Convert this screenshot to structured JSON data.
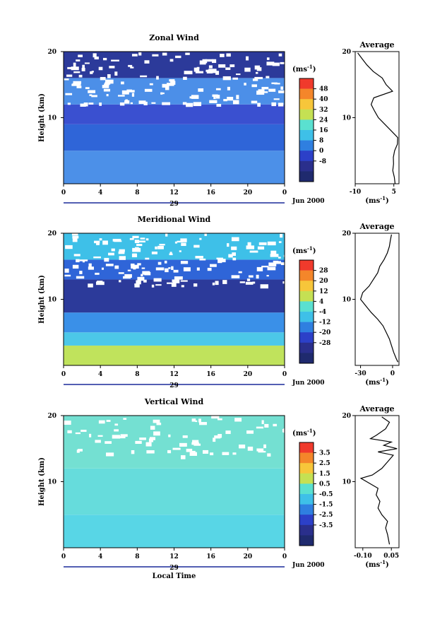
{
  "chart_data": [
    {
      "type": "heatmap",
      "title": "Zonal Wind",
      "xlabel": "",
      "ylabel": "Height (km)",
      "xlim": [
        0,
        24
      ],
      "ylim": [
        0,
        20
      ],
      "xticks": [
        "0",
        "4",
        "8",
        "12",
        "16",
        "20",
        "0"
      ],
      "yticks": [
        "20",
        "10"
      ],
      "date_label": "29",
      "month_label": "Jun 2000",
      "colorbar": {
        "unit": "(ms",
        "unit_exp": "-1",
        "unit_close": ")",
        "levels": [
          "48",
          "40",
          "32",
          "24",
          "16",
          "8",
          "0",
          "-8"
        ],
        "colors": [
          "#f03a2c",
          "#f4862a",
          "#f7c63a",
          "#c5e053",
          "#5ae0d0",
          "#3ec0e8",
          "#2f7fe0",
          "#2c40c8",
          "#2a2f8c",
          "#1f2a6e"
        ]
      },
      "field_bands": [
        {
          "y_from": 0,
          "y_to": 5,
          "color": "#4c90e8"
        },
        {
          "y_from": 5,
          "y_to": 9,
          "color": "#2f65d8"
        },
        {
          "y_from": 9,
          "y_to": 12,
          "color": "#3a50d0"
        },
        {
          "y_from": 12,
          "y_to": 16,
          "color": "#4c8fe8"
        },
        {
          "y_from": 16,
          "y_to": 20,
          "color": "#2c3a9a"
        }
      ],
      "average_profile": {
        "title": "Average",
        "xlim": [
          -10,
          7
        ],
        "xticks": [
          "-10",
          "5"
        ],
        "yticks": [
          "20",
          "10"
        ],
        "xlabel": "(ms",
        "xlabel_exp": "-1",
        "xlabel_close": ")",
        "height": [
          0,
          1,
          2,
          3,
          4,
          5,
          6,
          7,
          8,
          9,
          10,
          11,
          12,
          13,
          14,
          15,
          16,
          17,
          18,
          19,
          19.8
        ],
        "value": [
          5.5,
          5.2,
          4.6,
          4.9,
          4.8,
          5.3,
          6.4,
          6.5,
          4.0,
          1.5,
          -1.0,
          -2.5,
          -3.8,
          -2.8,
          4.5,
          2.0,
          0.5,
          -3.0,
          -5.5,
          -7.5,
          -9.0
        ]
      }
    },
    {
      "type": "heatmap",
      "title": "Meridional Wind",
      "xlabel": "",
      "ylabel": "Height (km)",
      "xlim": [
        0,
        24
      ],
      "ylim": [
        0,
        20
      ],
      "xticks": [
        "0",
        "4",
        "8",
        "12",
        "16",
        "20",
        "0"
      ],
      "yticks": [
        "20",
        "10"
      ],
      "date_label": "29",
      "month_label": "Jun 2000",
      "colorbar": {
        "unit": "(ms",
        "unit_exp": "-1",
        "unit_close": ")",
        "levels": [
          "28",
          "20",
          "12",
          "4",
          "-4",
          "-12",
          "-20",
          "-28"
        ],
        "colors": [
          "#f03a2c",
          "#f4862a",
          "#f7c63a",
          "#c5e053",
          "#5ae0d0",
          "#3ec0e8",
          "#2f7fe0",
          "#2c40c8",
          "#2a2f8c",
          "#1f2a6e"
        ]
      },
      "field_bands": [
        {
          "y_from": 0,
          "y_to": 3,
          "color": "#c0e35c"
        },
        {
          "y_from": 3,
          "y_to": 5,
          "color": "#4cc8e8"
        },
        {
          "y_from": 5,
          "y_to": 8,
          "color": "#3a90e8"
        },
        {
          "y_from": 8,
          "y_to": 13,
          "color": "#2c3a9a"
        },
        {
          "y_from": 13,
          "y_to": 16,
          "color": "#2f65d8"
        },
        {
          "y_from": 16,
          "y_to": 20,
          "color": "#3ec0e8"
        }
      ],
      "average_profile": {
        "title": "Average",
        "xlim": [
          -35,
          6
        ],
        "xticks": [
          "-30",
          "0"
        ],
        "yticks": [
          "20",
          "10"
        ],
        "xlabel": "(ms",
        "xlabel_exp": "-1",
        "xlabel_close": ")",
        "height": [
          0.5,
          1,
          2,
          3,
          4,
          5,
          6,
          7,
          8,
          9,
          10,
          11,
          12,
          13,
          14,
          15,
          16,
          17,
          18,
          19,
          19.8
        ],
        "value": [
          5.0,
          3.5,
          1.0,
          -1.0,
          -3.0,
          -6.0,
          -9.0,
          -14.0,
          -20.0,
          -25.0,
          -30.0,
          -28.0,
          -22.0,
          -18.0,
          -14.0,
          -12.0,
          -8.0,
          -5.0,
          -3.0,
          -2.0,
          -1.0
        ]
      }
    },
    {
      "type": "heatmap",
      "title": "Vertical Wind",
      "xlabel": "Local Time",
      "ylabel": "Height (km)",
      "xlim": [
        0,
        24
      ],
      "ylim": [
        0,
        20
      ],
      "xticks": [
        "0",
        "4",
        "8",
        "12",
        "16",
        "20",
        "0"
      ],
      "yticks": [
        "20",
        "10"
      ],
      "date_label": "29",
      "month_label": "Jun 2000",
      "colorbar": {
        "unit": "(ms",
        "unit_exp": "-1",
        "unit_close": ")",
        "levels": [
          "3.5",
          "2.5",
          "1.5",
          "0.5",
          "-0.5",
          "-1.5",
          "-2.5",
          "-3.5"
        ],
        "colors": [
          "#f03a2c",
          "#f4862a",
          "#f7c63a",
          "#c5e053",
          "#5ae0d0",
          "#3ec0e8",
          "#2f7fe0",
          "#2c40c8",
          "#2a2f8c",
          "#1f2a6e"
        ]
      },
      "field_bands": [
        {
          "y_from": 0,
          "y_to": 5,
          "color": "#58d6e6"
        },
        {
          "y_from": 5,
          "y_to": 12,
          "color": "#66dcdc"
        },
        {
          "y_from": 12,
          "y_to": 20,
          "color": "#74e0d2"
        }
      ],
      "average_profile": {
        "title": "Average",
        "xlim": [
          -0.14,
          0.09
        ],
        "xticks": [
          "-0.10",
          "0.05"
        ],
        "yticks": [
          "20",
          "10"
        ],
        "xlabel": "(ms",
        "xlabel_exp": "-1",
        "xlabel_close": ")",
        "height": [
          0.5,
          2,
          3,
          4,
          5,
          6,
          7,
          8,
          9,
          10,
          10.5,
          11,
          12,
          13,
          14,
          14.5,
          15,
          15.5,
          16,
          16.5,
          17,
          18,
          19,
          19.8
        ],
        "value": [
          0.04,
          0.03,
          0.02,
          0.03,
          0.0,
          -0.02,
          -0.01,
          -0.03,
          -0.02,
          -0.08,
          -0.11,
          -0.05,
          0.0,
          0.03,
          0.06,
          -0.02,
          0.08,
          0.01,
          0.05,
          -0.06,
          -0.03,
          0.02,
          0.04,
          0.0
        ]
      }
    }
  ]
}
